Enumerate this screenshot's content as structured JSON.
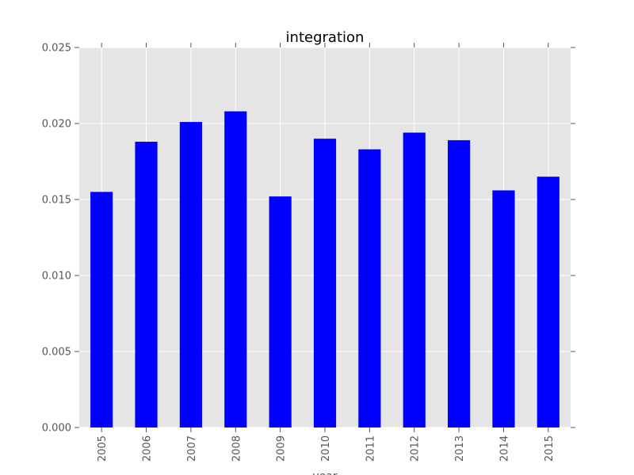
{
  "chart_data": {
    "type": "bar",
    "title": "integration",
    "xlabel": "year",
    "ylabel": "",
    "categories": [
      "2005",
      "2006",
      "2007",
      "2008",
      "2009",
      "2010",
      "2011",
      "2012",
      "2013",
      "2014",
      "2015"
    ],
    "values": [
      0.0155,
      0.0188,
      0.0201,
      0.0208,
      0.0152,
      0.019,
      0.0183,
      0.0194,
      0.0189,
      0.0156,
      0.0165
    ],
    "ylim": [
      0,
      0.025
    ],
    "yticks": [
      "0.000",
      "0.005",
      "0.010",
      "0.015",
      "0.020",
      "0.025"
    ],
    "grid": true,
    "legend": "none",
    "colors": {
      "bar": "#0000ff",
      "plot_background": "#e5e5e5",
      "grid": "#ffffff",
      "text": "#555555"
    }
  }
}
